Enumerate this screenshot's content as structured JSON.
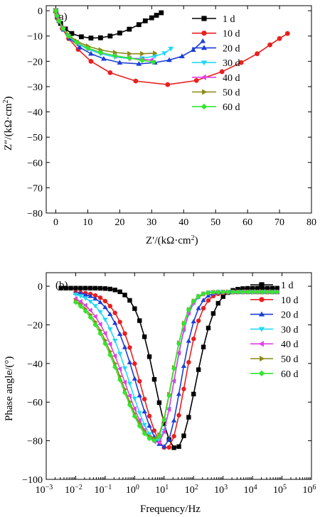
{
  "series_colors": [
    "#000000",
    "#e8201f",
    "#1c3fd6",
    "#21d9f5",
    "#e23fe6",
    "#8a8a18",
    "#33e62e"
  ],
  "chart_data": [
    {
      "type": "scatter",
      "panel_label": "(a)",
      "xlabel_main": "Z′/(kΩ·cm",
      "xlabel_sup": "2",
      "xlabel_close": ")",
      "ylabel_main": "Z″/(kΩ·cm",
      "ylabel_sup": "2",
      "ylabel_close": ")",
      "xlim": [
        -3,
        80
      ],
      "ylim": [
        -80,
        2
      ],
      "y_inverted": true,
      "xticks": [
        0,
        10,
        20,
        30,
        40,
        50,
        60,
        70,
        80
      ],
      "yticks": [
        0,
        -10,
        -20,
        -30,
        -40,
        -50,
        -60,
        -70,
        -80
      ],
      "legend_position": "top-right",
      "series": [
        {
          "name": "1 d",
          "marker": "square",
          "x": [
            0,
            0.5,
            1.5,
            3,
            5,
            8,
            11,
            14,
            17,
            20,
            23,
            26,
            28,
            30,
            31.5,
            33
          ],
          "y": [
            0,
            -2.5,
            -5,
            -7.2,
            -9,
            -10.3,
            -10.8,
            -10.7,
            -10,
            -8.8,
            -7.3,
            -5.5,
            -4,
            -2.8,
            -1.8,
            -0.8
          ]
        },
        {
          "name": "10 d",
          "marker": "circle",
          "x": [
            0,
            0.3,
            0.8,
            2,
            4,
            7,
            11,
            17,
            25,
            35,
            44,
            52,
            58,
            63,
            67,
            70,
            72.5
          ],
          "y": [
            0,
            -1.5,
            -3.5,
            -7,
            -11,
            -15.3,
            -20,
            -24.5,
            -27.8,
            -29.2,
            -27.6,
            -24.1,
            -20.5,
            -17,
            -13.5,
            -11,
            -9
          ]
        },
        {
          "name": "20 d",
          "marker": "triangle-up",
          "x": [
            0,
            0.4,
            1,
            2.5,
            4.5,
            7.5,
            11,
            15,
            20,
            26,
            31,
            35.5,
            39.5,
            43,
            46
          ],
          "y": [
            0,
            -2,
            -4,
            -7.5,
            -11,
            -14.5,
            -17,
            -19,
            -20.5,
            -21,
            -20.5,
            -19.5,
            -18,
            -15.5,
            -12
          ]
        },
        {
          "name": "30 d",
          "marker": "triangle-down",
          "x": [
            0,
            0.4,
            1,
            2.3,
            4,
            6.5,
            10,
            14,
            18.5,
            23,
            27,
            31,
            34,
            36
          ],
          "y": [
            0,
            -2,
            -4,
            -7,
            -10,
            -12.8,
            -15.2,
            -17,
            -18.3,
            -18.9,
            -18.8,
            -18,
            -16.8,
            -15
          ]
        },
        {
          "name": "40 d",
          "marker": "triangle-left",
          "x": [
            0,
            0.4,
            1,
            2.3,
            4,
            6.5,
            10,
            14,
            18.5,
            23,
            27,
            30
          ],
          "y": [
            0,
            -2,
            -4,
            -7,
            -10,
            -12.5,
            -14.8,
            -16.5,
            -17.8,
            -18.7,
            -19.2,
            -19.5
          ]
        },
        {
          "name": "50 d",
          "marker": "triangle-right",
          "x": [
            0,
            0.4,
            1,
            2.3,
            4,
            6.5,
            10,
            14,
            18.5,
            23,
            27,
            31
          ],
          "y": [
            0,
            -2,
            -4,
            -6.8,
            -9.5,
            -12,
            -14,
            -15.5,
            -16.5,
            -17,
            -17,
            -16.8
          ]
        },
        {
          "name": "60 d",
          "marker": "diamond",
          "x": [
            0,
            0.4,
            1,
            2.3,
            4,
            6.5,
            10,
            14,
            18.5,
            23,
            27,
            30.5
          ],
          "y": [
            0,
            -2,
            -4,
            -7,
            -10,
            -12.5,
            -14.8,
            -16.5,
            -17.8,
            -18.7,
            -19.6,
            -20.3
          ]
        }
      ]
    },
    {
      "type": "line",
      "panel_label": "(b)",
      "xlabel": "Frequency/Hz",
      "ylabel": "Phase angle/(°)",
      "xscale": "log",
      "xlim": [
        0.001,
        1000000
      ],
      "ylim": [
        -100,
        7
      ],
      "y_inverted": true,
      "xtick_exponents": [
        "-3",
        "-2",
        "-1",
        "0",
        "1",
        "2",
        "3",
        "4",
        "5",
        "6"
      ],
      "xtick_base": "10",
      "yticks": [
        0,
        -20,
        -40,
        -60,
        -80,
        -100
      ],
      "legend_position": "top-right",
      "series": [
        {
          "name": "1 d",
          "marker": "square",
          "logf_start": -2.5,
          "log_peak": 1.4,
          "peak": -84,
          "sigma_left": 0.69,
          "sigma_right": 0.66,
          "baseline": -1,
          "logf_end": 5
        },
        {
          "name": "10 d",
          "marker": "circle",
          "logf_start": -2,
          "log_peak": 1.1,
          "peak": -84,
          "sigma_left": 0.88,
          "sigma_right": 0.58,
          "baseline": -3,
          "logf_end": 5
        },
        {
          "name": "20 d",
          "marker": "triangle-up",
          "logf_start": -2,
          "log_peak": 1.0,
          "peak": -83,
          "sigma_left": 0.93,
          "sigma_right": 0.55,
          "baseline": -3,
          "logf_end": 5
        },
        {
          "name": "30 d",
          "marker": "triangle-down",
          "logf_start": -2,
          "log_peak": 0.8,
          "peak": -80,
          "sigma_left": 0.98,
          "sigma_right": 0.53,
          "baseline": -3,
          "logf_end": 5
        },
        {
          "name": "40 d",
          "marker": "triangle-left",
          "logf_start": -2,
          "log_peak": 0.8,
          "peak": -81,
          "sigma_left": 1.12,
          "sigma_right": 0.52,
          "baseline": -3,
          "logf_end": 5
        },
        {
          "name": "50 d",
          "marker": "triangle-right",
          "logf_start": -2,
          "log_peak": 0.7,
          "peak": -79,
          "sigma_left": 1.14,
          "sigma_right": 0.55,
          "baseline": -3,
          "logf_end": 5
        },
        {
          "name": "60 d",
          "marker": "diamond",
          "logf_start": -2,
          "log_peak": 0.7,
          "peak": -80,
          "sigma_left": 1.17,
          "sigma_right": 0.55,
          "baseline": -3,
          "logf_end": 5
        }
      ]
    }
  ]
}
